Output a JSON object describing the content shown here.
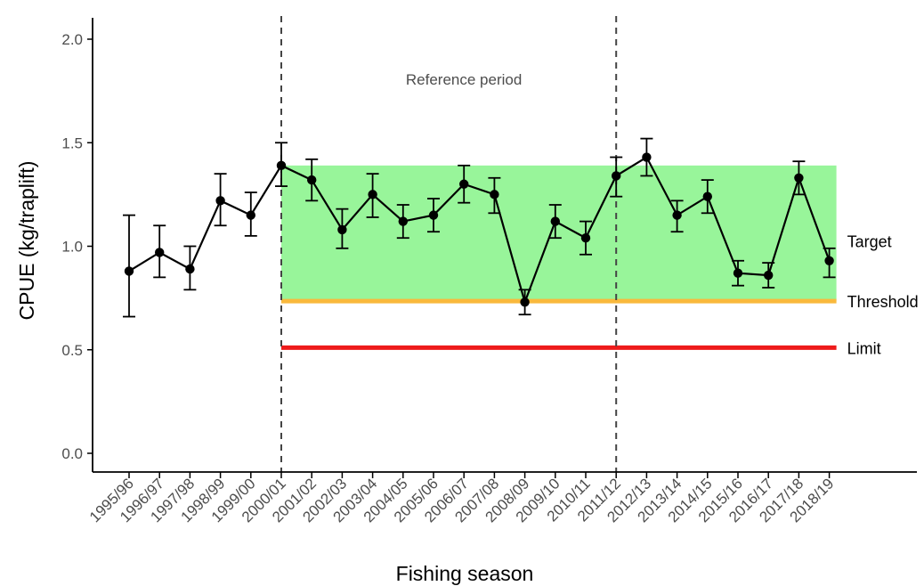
{
  "chart_data": {
    "type": "line",
    "xlabel": "Fishing season",
    "ylabel": "CPUE (kg/traplift)",
    "ylim": [
      -0.05,
      2.1
    ],
    "yticks": [
      "0.0",
      "0.5",
      "1.0",
      "1.5",
      "2.0"
    ],
    "categories": [
      "1995/96",
      "1996/97",
      "1997/98",
      "1998/99",
      "1999/00",
      "2000/01",
      "2001/02",
      "2002/03",
      "2003/04",
      "2004/05",
      "2005/06",
      "2006/07",
      "2007/08",
      "2008/09",
      "2009/10",
      "2010/11",
      "2011/12",
      "2012/13",
      "2013/14",
      "2014/15",
      "2015/16",
      "2016/17",
      "2017/18",
      "2018/19"
    ],
    "series": [
      {
        "values": [
          0.88,
          0.97,
          0.89,
          1.22,
          1.15,
          1.39,
          1.32,
          1.08,
          1.25,
          1.12,
          1.15,
          1.3,
          1.25,
          0.73,
          1.12,
          1.04,
          1.34,
          1.43,
          1.15,
          1.24,
          0.87,
          0.86,
          1.33,
          0.93
        ],
        "lower": [
          0.66,
          0.85,
          0.79,
          1.1,
          1.05,
          1.29,
          1.22,
          0.99,
          1.14,
          1.04,
          1.07,
          1.21,
          1.16,
          0.67,
          1.04,
          0.96,
          1.24,
          1.34,
          1.07,
          1.16,
          0.81,
          0.8,
          1.25,
          0.85
        ],
        "upper": [
          1.15,
          1.1,
          1.0,
          1.35,
          1.26,
          1.5,
          1.42,
          1.18,
          1.35,
          1.2,
          1.23,
          1.39,
          1.33,
          0.79,
          1.2,
          1.12,
          1.43,
          1.52,
          1.22,
          1.32,
          0.93,
          0.92,
          1.41,
          0.99
        ],
        "color": "#000000"
      }
    ],
    "reference_period": {
      "label": "Reference period",
      "start": "2000/01",
      "end": "2011/12"
    },
    "target_band": {
      "label": "Target",
      "low": 0.735,
      "high": 1.39,
      "color": "#98f59a"
    },
    "threshold": {
      "label": "Threshold",
      "value": 0.735,
      "color": "#f9b93d"
    },
    "limit": {
      "label": "Limit",
      "value": 0.51,
      "color": "#ee1b1b"
    },
    "grid": false
  }
}
